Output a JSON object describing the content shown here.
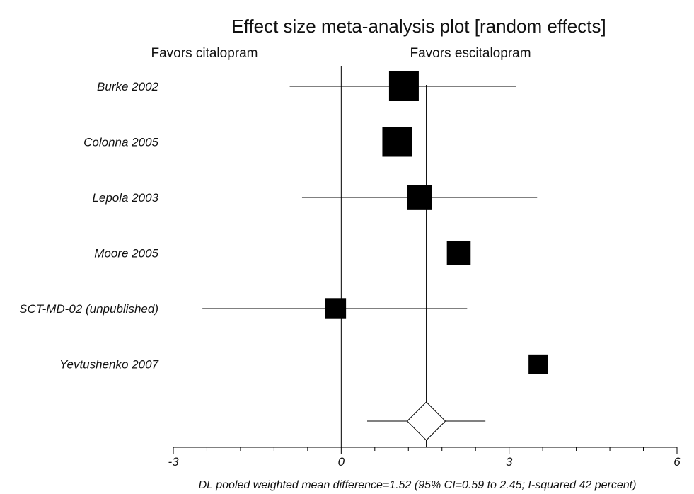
{
  "chart_data": {
    "type": "forest",
    "title": "Effect size meta-analysis plot [random effects]",
    "left_label": "Favors citalopram",
    "right_label": "Favors escitalopram",
    "xlim": [
      -3,
      6
    ],
    "x_ticks": [
      -3,
      0,
      3,
      6
    ],
    "x_tick_labels": [
      "-3",
      "0",
      "3",
      "6"
    ],
    "x_minor_step": 0.6,
    "reference_line": 0,
    "studies": [
      {
        "name": "Burke 2002",
        "estimate": 1.12,
        "ci": [
          -0.92,
          3.12
        ],
        "weight": 1.0
      },
      {
        "name": "Colonna 2005",
        "estimate": 1.0,
        "ci": [
          -0.97,
          2.95
        ],
        "weight": 1.0
      },
      {
        "name": "Lepola 2003",
        "estimate": 1.4,
        "ci": [
          -0.7,
          3.5
        ],
        "weight": 0.85
      },
      {
        "name": "Moore 2005",
        "estimate": 2.1,
        "ci": [
          -0.08,
          4.28
        ],
        "weight": 0.8
      },
      {
        "name": "SCT-MD-02 (unpublished)",
        "estimate": -0.1,
        "ci": [
          -2.48,
          2.25
        ],
        "weight": 0.7
      },
      {
        "name": "Yevtushenko 2007",
        "estimate": 3.52,
        "ci": [
          1.35,
          5.7
        ],
        "weight": 0.65
      }
    ],
    "pooled": {
      "estimate": 1.52,
      "ci": [
        0.59,
        2.45
      ]
    },
    "footnote": "DL pooled weighted mean difference=1.52 (95% CI=0.59 to 2.45; I-squared 42 percent)"
  }
}
